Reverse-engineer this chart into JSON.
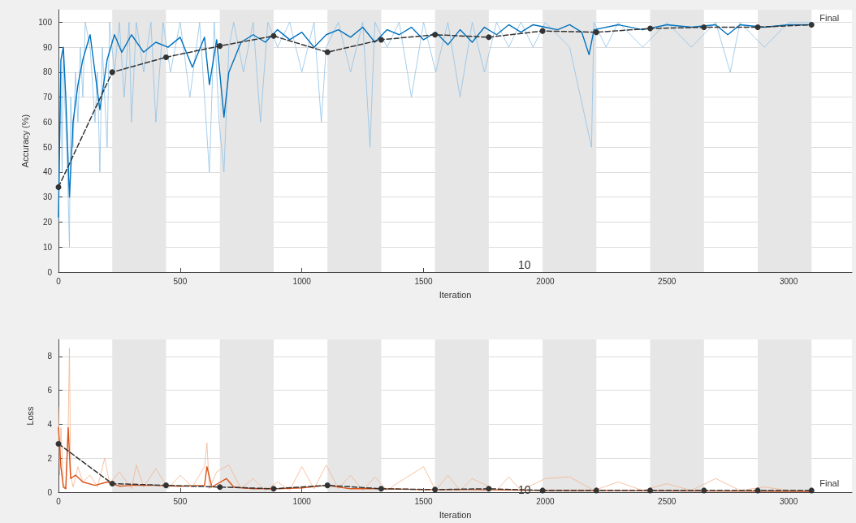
{
  "chart_data": [
    {
      "type": "line",
      "xlabel": "Iteration",
      "ylabel": "Accuracy (%)",
      "xlim": [
        0,
        3260
      ],
      "xticks": [
        0,
        500,
        1000,
        1500,
        2000,
        2500,
        3000
      ],
      "ylim": [
        0,
        105
      ],
      "yticks": [
        0,
        10,
        20,
        30,
        40,
        50,
        60,
        70,
        80,
        90,
        100
      ],
      "grid": "y",
      "marker": "none",
      "line_style": "solid",
      "bands": [
        {
          "axis": "x",
          "from": 221,
          "to": 442,
          "color": "#e6e6e6"
        },
        {
          "axis": "x",
          "from": 663,
          "to": 884,
          "color": "#e6e6e6"
        },
        {
          "axis": "x",
          "from": 1105,
          "to": 1326,
          "color": "#e6e6e6"
        },
        {
          "axis": "x",
          "from": 1547,
          "to": 1768,
          "color": "#e6e6e6"
        },
        {
          "axis": "x",
          "from": 1989,
          "to": 2210,
          "color": "#e6e6e6"
        },
        {
          "axis": "x",
          "from": 2431,
          "to": 2652,
          "color": "#e6e6e6"
        },
        {
          "axis": "x",
          "from": 2873,
          "to": 3094,
          "color": "#e6e6e6"
        }
      ],
      "series": [
        {
          "color": "#8fc1e6",
          "x": [
            0,
            5,
            10,
            15,
            20,
            25,
            30,
            40,
            45,
            50,
            60,
            70,
            80,
            90,
            100,
            110,
            130,
            150,
            160,
            170,
            180,
            200,
            210,
            230,
            250,
            270,
            290,
            300,
            320,
            350,
            380,
            400,
            430,
            460,
            500,
            540,
            580,
            620,
            640,
            660,
            680,
            700,
            720,
            760,
            800,
            830,
            860,
            900,
            950,
            1000,
            1050,
            1080,
            1100,
            1150,
            1200,
            1250,
            1280,
            1300,
            1350,
            1400,
            1450,
            1500,
            1550,
            1600,
            1650,
            1700,
            1750,
            1800,
            1850,
            1900,
            1950,
            2000,
            2100,
            2190,
            2200,
            2250,
            2300,
            2400,
            2500,
            2600,
            2700,
            2760,
            2800,
            2900,
            3000,
            3094
          ],
          "values": [
            20,
            50,
            80,
            40,
            90,
            70,
            60,
            30,
            10,
            70,
            50,
            80,
            60,
            90,
            70,
            100,
            90,
            60,
            80,
            40,
            90,
            50,
            100,
            80,
            100,
            70,
            100,
            60,
            100,
            80,
            100,
            60,
            100,
            80,
            100,
            70,
            100,
            40,
            100,
            60,
            40,
            90,
            100,
            80,
            100,
            60,
            100,
            90,
            100,
            80,
            100,
            60,
            90,
            100,
            80,
            100,
            50,
            100,
            90,
            100,
            70,
            100,
            80,
            100,
            70,
            100,
            80,
            100,
            90,
            100,
            90,
            100,
            90,
            50,
            100,
            90,
            100,
            90,
            100,
            90,
            100,
            80,
            100,
            90,
            100,
            100
          ]
        },
        {
          "color": "#0072bd",
          "x": [
            0,
            10,
            20,
            30,
            45,
            60,
            80,
            100,
            130,
            150,
            170,
            200,
            230,
            260,
            300,
            350,
            400,
            450,
            500,
            550,
            600,
            620,
            650,
            680,
            700,
            750,
            800,
            850,
            900,
            950,
            1000,
            1050,
            1100,
            1150,
            1200,
            1250,
            1300,
            1350,
            1400,
            1450,
            1500,
            1550,
            1600,
            1650,
            1700,
            1750,
            1800,
            1850,
            1900,
            1950,
            2000,
            2050,
            2100,
            2150,
            2180,
            2200,
            2300,
            2400,
            2500,
            2600,
            2700,
            2750,
            2800,
            2900,
            3000,
            3094
          ],
          "values": [
            22,
            85,
            90,
            70,
            30,
            60,
            75,
            85,
            95,
            80,
            65,
            85,
            95,
            88,
            95,
            88,
            92,
            90,
            94,
            82,
            94,
            75,
            93,
            62,
            80,
            92,
            95,
            92,
            97,
            93,
            96,
            90,
            95,
            97,
            94,
            98,
            92,
            97,
            95,
            98,
            93,
            96,
            91,
            97,
            92,
            98,
            95,
            99,
            96,
            99,
            98,
            97,
            99,
            96,
            87,
            97,
            99,
            97,
            99,
            98,
            99,
            95,
            99,
            98,
            99,
            99
          ]
        },
        {
          "color": "#333333",
          "line_style": "dashed",
          "marker": "circle",
          "x": [
            0,
            221,
            442,
            663,
            884,
            1105,
            1326,
            1547,
            1768,
            1989,
            2210,
            2431,
            2652,
            2873,
            3094
          ],
          "values": [
            34,
            80,
            86,
            90.5,
            94.5,
            88,
            93,
            95,
            94,
            96.5,
            96,
            97.5,
            98,
            98,
            99
          ]
        }
      ],
      "annotations": [
        "10",
        {
          "text": "Final",
          "x": 3094,
          "y": 99
        }
      ]
    },
    {
      "type": "line",
      "xlabel": "Iteration",
      "ylabel": "Loss",
      "xlim": [
        0,
        3260
      ],
      "xticks": [
        0,
        500,
        1000,
        1500,
        2000,
        2500,
        3000
      ],
      "ylim": [
        0,
        9
      ],
      "yticks": [
        0,
        2,
        4,
        6,
        8
      ],
      "grid": "y",
      "marker": "none",
      "line_style": "solid",
      "bands": [
        {
          "axis": "x",
          "from": 221,
          "to": 442,
          "color": "#e6e6e6"
        },
        {
          "axis": "x",
          "from": 663,
          "to": 884,
          "color": "#e6e6e6"
        },
        {
          "axis": "x",
          "from": 1105,
          "to": 1326,
          "color": "#e6e6e6"
        },
        {
          "axis": "x",
          "from": 1547,
          "to": 1768,
          "color": "#e6e6e6"
        },
        {
          "axis": "x",
          "from": 1989,
          "to": 2210,
          "color": "#e6e6e6"
        },
        {
          "axis": "x",
          "from": 2431,
          "to": 2652,
          "color": "#e6e6e6"
        },
        {
          "axis": "x",
          "from": 2873,
          "to": 3094,
          "color": "#e6e6e6"
        }
      ],
      "series": [
        {
          "color": "#f2b48f",
          "x": [
            0,
            5,
            10,
            20,
            30,
            40,
            45,
            50,
            60,
            80,
            100,
            130,
            160,
            190,
            210,
            250,
            300,
            320,
            350,
            400,
            450,
            500,
            550,
            600,
            610,
            620,
            650,
            700,
            750,
            800,
            850,
            900,
            950,
            1000,
            1050,
            1100,
            1150,
            1200,
            1250,
            1300,
            1350,
            1400,
            1500,
            1550,
            1600,
            1650,
            1700,
            1800,
            1850,
            1900,
            2000,
            2100,
            2200,
            2300,
            2400,
            2500,
            2600,
            2700,
            2800,
            2900,
            3000,
            3094
          ],
          "values": [
            5,
            1,
            3.8,
            0.5,
            0.2,
            3.9,
            8.5,
            1,
            0.3,
            1.5,
            0.6,
            1,
            0.3,
            2,
            0.5,
            1.2,
            0.2,
            1.6,
            0.3,
            1.4,
            0.2,
            1,
            0.3,
            1.5,
            2.9,
            0.2,
            1.2,
            1.6,
            0.2,
            0.8,
            0.1,
            0.6,
            0.1,
            1.5,
            0.2,
            1.6,
            0.2,
            1,
            0.1,
            0.9,
            0.1,
            0.6,
            1.5,
            0.1,
            1,
            0.1,
            0.8,
            0.1,
            0.9,
            0.1,
            0.8,
            0.9,
            0.1,
            0.6,
            0.1,
            0.5,
            0.1,
            0.8,
            0.1,
            0.3,
            0.1,
            0.05
          ]
        },
        {
          "color": "#d95319",
          "x": [
            0,
            10,
            20,
            30,
            40,
            50,
            70,
            100,
            150,
            200,
            250,
            300,
            400,
            500,
            600,
            610,
            630,
            690,
            720,
            800,
            900,
            1000,
            1100,
            1200,
            1300,
            1500,
            1700,
            2000,
            2500,
            3094
          ],
          "values": [
            3.8,
            1.5,
            0.3,
            0.2,
            3.8,
            0.8,
            1,
            0.6,
            0.4,
            0.6,
            0.35,
            0.4,
            0.4,
            0.35,
            0.4,
            1.5,
            0.3,
            0.8,
            0.3,
            0.2,
            0.2,
            0.25,
            0.4,
            0.2,
            0.2,
            0.15,
            0.15,
            0.1,
            0.08,
            0.05
          ]
        },
        {
          "color": "#333333",
          "line_style": "dashed",
          "marker": "circle",
          "x": [
            0,
            221,
            442,
            663,
            884,
            1105,
            1326,
            1547,
            1768,
            1989,
            2210,
            2431,
            2652,
            2873,
            3094
          ],
          "values": [
            2.85,
            0.5,
            0.4,
            0.3,
            0.2,
            0.4,
            0.2,
            0.15,
            0.2,
            0.1,
            0.1,
            0.1,
            0.1,
            0.1,
            0.1
          ]
        }
      ],
      "annotations": [
        "10",
        {
          "text": "Final",
          "x": 3094,
          "y": 0.1
        }
      ]
    }
  ]
}
